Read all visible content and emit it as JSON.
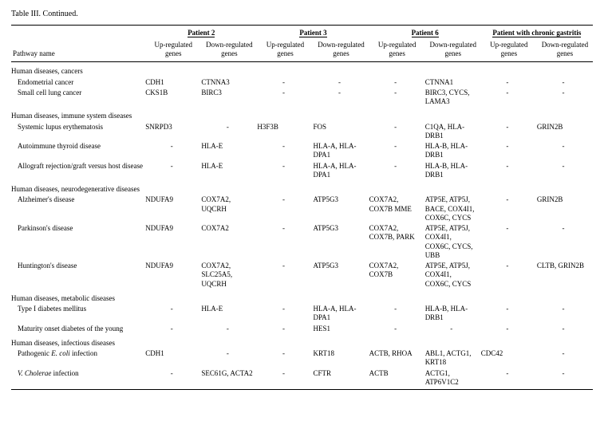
{
  "title": "Table III. Continued.",
  "patientGroups": [
    "Patient 2",
    "Patient 3",
    "Patient 6",
    "Patient with chronic gastritis"
  ],
  "subHeaders": {
    "pathway": "Pathway name",
    "up": "Up-regulated genes",
    "down": "Down-regulated genes"
  },
  "style": {
    "bg": "#ffffff",
    "fg": "#000000",
    "font": "Times New Roman",
    "baseFontSize": 9,
    "titleFontSize": 10,
    "dash": "-"
  },
  "sections": [
    {
      "heading": "Human diseases, cancers",
      "rows": [
        {
          "name": "Endometrial cancer",
          "cells": [
            "CDH1",
            "CTNNA3",
            "-",
            "-",
            "-",
            "CTNNA1",
            "-",
            "-"
          ]
        },
        {
          "name": "Small cell lung cancer",
          "cells": [
            "CKS1B",
            "BIRC3",
            "-",
            "-",
            "-",
            "BIRC3, CYCS, LAMA3",
            "-",
            "-"
          ]
        }
      ]
    },
    {
      "heading": "Human diseases, immune system diseases",
      "rows": [
        {
          "name": "Systemic lupus erythematosis",
          "cells": [
            "SNRPD3",
            "-",
            "H3F3B",
            "FOS",
            "-",
            "C1QA, HLA-DRB1",
            "-",
            "GRIN2B"
          ]
        },
        {
          "name": "Autoimmune thyroid disease",
          "cells": [
            "-",
            "HLA-E",
            "-",
            "HLA-A, HLA-DPA1",
            "-",
            "HLA-B, HLA-DRB1",
            "-",
            "-"
          ]
        },
        {
          "name": "Allograft rejection/graft versus host disease",
          "cells": [
            "-",
            "HLA-E",
            "-",
            "HLA-A, HLA-DPA1",
            "-",
            "HLA-B, HLA-DRB1",
            "-",
            "-"
          ]
        }
      ]
    },
    {
      "heading": "Human diseases, neurodegenerative diseases",
      "rows": [
        {
          "name": "Alzheimer's disease",
          "cells": [
            "NDUFA9",
            "COX7A2, UQCRH",
            "-",
            "ATP5G3",
            "COX7A2, COX7B MME",
            "ATP5E, ATP5J, BACE, COX4I1, COX6C, CYCS",
            "-",
            "GRIN2B"
          ]
        },
        {
          "name": "Parkinson's disease",
          "cells": [
            "NDUFA9",
            "COX7A2",
            "-",
            "ATP5G3",
            "COX7A2, COX7B, PARK",
            "ATP5E, ATP5J, COX4I1, COX6C, CYCS, UBB",
            "-",
            "-"
          ]
        },
        {
          "name": "Huntington's disease",
          "cells": [
            "NDUFA9",
            "COX7A2, SLC25A5, UQCRH",
            "-",
            "ATP5G3",
            "COX7A2, COX7B",
            "ATP5E, ATP5J, COX4I1, COX6C, CYCS",
            "-",
            "CLTB, GRIN2B"
          ]
        }
      ]
    },
    {
      "heading": "Human diseases, metabolic diseases",
      "rows": [
        {
          "name": "Type I diabetes mellitus",
          "cells": [
            "-",
            "HLA-E",
            "-",
            "HLA-A, HLA-DPA1",
            "-",
            "HLA-B, HLA-DRB1",
            "-",
            "-"
          ]
        },
        {
          "name": "Maturity onset diabetes of the young",
          "cells": [
            "-",
            "-",
            "-",
            "HES1",
            "-",
            "-",
            "-",
            "-"
          ]
        }
      ]
    },
    {
      "heading": "Human diseases, infectious diseases",
      "rows": [
        {
          "name": "Pathogenic <i>E. coli</i> infection",
          "cells": [
            "CDH1",
            "-",
            "-",
            "KRT18",
            "ACTB, RHOA",
            "ABL1, ACTG1, KRT18",
            "CDC42",
            "-"
          ]
        },
        {
          "name": "<i>V. Cholerae</i> infection",
          "cells": [
            "-",
            "SEC61G, ACTA2",
            "-",
            "CFTR",
            "ACTB",
            "ACTG1, ATP6V1C2",
            "-",
            "-"
          ]
        }
      ]
    }
  ]
}
